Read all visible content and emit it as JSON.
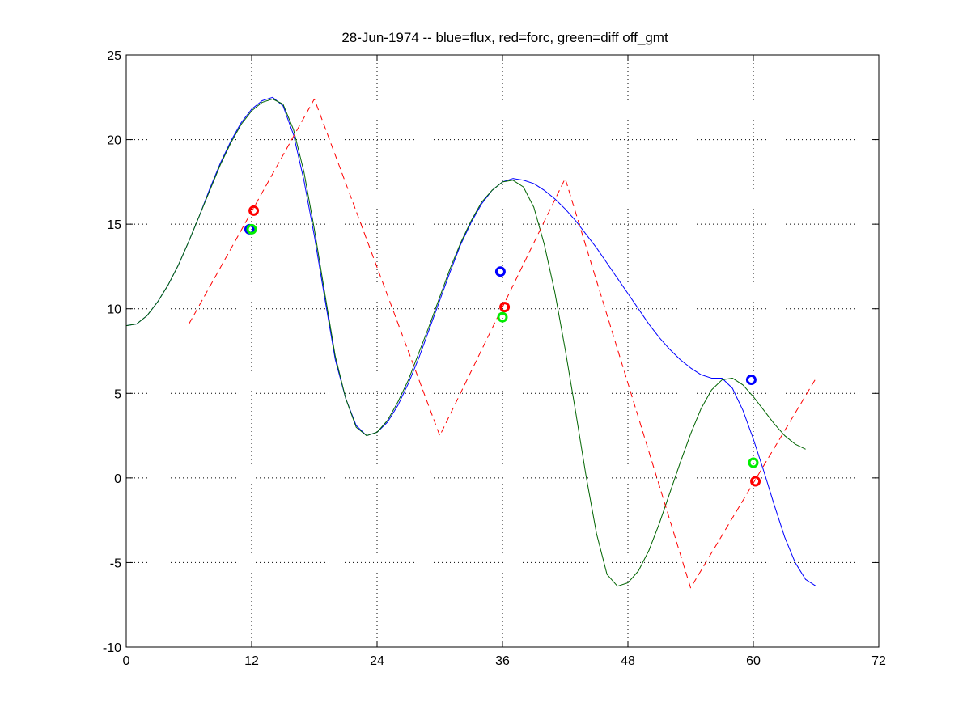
{
  "chart_data": {
    "type": "line",
    "title": "28-Jun-1974 -- blue=flux, red=forc, green=diff off_gmt",
    "xlabel": "",
    "ylabel": "",
    "xlim": [
      0,
      72
    ],
    "ylim": [
      -10,
      25
    ],
    "xticks": [
      0,
      12,
      24,
      36,
      48,
      60,
      72
    ],
    "yticks": [
      -10,
      -5,
      0,
      5,
      10,
      15,
      20,
      25
    ],
    "xtick_labels": [
      "0",
      "12",
      "24",
      "36",
      "48",
      "60",
      "72"
    ],
    "ytick_labels": [
      "-10",
      "-5",
      "0",
      "5",
      "10",
      "15",
      "20",
      "25"
    ],
    "grid": true,
    "legend": "none",
    "series": [
      {
        "color": "#0000ff",
        "style": "solid",
        "points": [
          [
            0,
            9.0
          ],
          [
            1,
            9.1
          ],
          [
            2,
            9.6
          ],
          [
            3,
            10.4
          ],
          [
            4,
            11.4
          ],
          [
            5,
            12.6
          ],
          [
            6,
            14.0
          ],
          [
            7,
            15.5
          ],
          [
            8,
            17.1
          ],
          [
            9,
            18.6
          ],
          [
            10,
            19.9
          ],
          [
            11,
            21.0
          ],
          [
            12,
            21.8
          ],
          [
            13,
            22.3
          ],
          [
            14,
            22.5
          ],
          [
            15,
            22.0
          ],
          [
            16,
            20.3
          ],
          [
            17,
            17.6
          ],
          [
            18,
            14.3
          ],
          [
            19,
            10.6
          ],
          [
            20,
            7.0
          ],
          [
            21,
            4.7
          ],
          [
            22,
            3.1
          ],
          [
            23,
            2.5
          ],
          [
            24,
            2.7
          ],
          [
            25,
            3.3
          ],
          [
            26,
            4.3
          ],
          [
            27,
            5.6
          ],
          [
            28,
            7.1
          ],
          [
            29,
            8.8
          ],
          [
            30,
            10.5
          ],
          [
            31,
            12.2
          ],
          [
            32,
            13.8
          ],
          [
            33,
            15.1
          ],
          [
            34,
            16.2
          ],
          [
            35,
            17.0
          ],
          [
            36,
            17.5
          ],
          [
            37,
            17.7
          ],
          [
            38,
            17.6
          ],
          [
            39,
            17.4
          ],
          [
            40,
            17.0
          ],
          [
            41,
            16.5
          ],
          [
            42,
            15.9
          ],
          [
            43,
            15.2
          ],
          [
            44,
            14.4
          ],
          [
            45,
            13.6
          ],
          [
            46,
            12.7
          ],
          [
            47,
            11.8
          ],
          [
            48,
            10.9
          ],
          [
            49,
            10.0
          ],
          [
            50,
            9.1
          ],
          [
            51,
            8.3
          ],
          [
            52,
            7.6
          ],
          [
            53,
            7.0
          ],
          [
            54,
            6.5
          ],
          [
            55,
            6.1
          ],
          [
            56,
            5.9
          ],
          [
            57,
            5.9
          ],
          [
            58,
            5.3
          ],
          [
            59,
            4.0
          ],
          [
            60,
            2.3
          ],
          [
            61,
            0.4
          ],
          [
            62,
            -1.6
          ],
          [
            63,
            -3.5
          ],
          [
            64,
            -5.0
          ],
          [
            65,
            -6.0
          ],
          [
            66,
            -6.4
          ]
        ]
      },
      {
        "color": "#006400",
        "style": "solid",
        "points": [
          [
            0,
            9.0
          ],
          [
            1,
            9.1
          ],
          [
            2,
            9.6
          ],
          [
            3,
            10.4
          ],
          [
            4,
            11.4
          ],
          [
            5,
            12.6
          ],
          [
            6,
            14.0
          ],
          [
            7,
            15.5
          ],
          [
            8,
            17.0
          ],
          [
            9,
            18.5
          ],
          [
            10,
            19.8
          ],
          [
            11,
            20.9
          ],
          [
            12,
            21.7
          ],
          [
            13,
            22.2
          ],
          [
            14,
            22.4
          ],
          [
            15,
            22.1
          ],
          [
            16,
            20.6
          ],
          [
            17,
            18.1
          ],
          [
            18,
            14.7
          ],
          [
            19,
            10.9
          ],
          [
            20,
            7.2
          ],
          [
            21,
            4.7
          ],
          [
            22,
            3.0
          ],
          [
            23,
            2.5
          ],
          [
            24,
            2.7
          ],
          [
            25,
            3.4
          ],
          [
            26,
            4.5
          ],
          [
            27,
            5.8
          ],
          [
            28,
            7.4
          ],
          [
            29,
            9.0
          ],
          [
            30,
            10.7
          ],
          [
            31,
            12.4
          ],
          [
            32,
            13.9
          ],
          [
            33,
            15.2
          ],
          [
            34,
            16.3
          ],
          [
            35,
            17.0
          ],
          [
            36,
            17.5
          ],
          [
            37,
            17.6
          ],
          [
            38,
            17.2
          ],
          [
            39,
            16.0
          ],
          [
            40,
            13.8
          ],
          [
            41,
            11.0
          ],
          [
            42,
            7.6
          ],
          [
            43,
            3.9
          ],
          [
            44,
            0.1
          ],
          [
            45,
            -3.3
          ],
          [
            46,
            -5.7
          ],
          [
            47,
            -6.4
          ],
          [
            48,
            -6.2
          ],
          [
            49,
            -5.5
          ],
          [
            50,
            -4.3
          ],
          [
            51,
            -2.7
          ],
          [
            52,
            -0.9
          ],
          [
            53,
            0.9
          ],
          [
            54,
            2.6
          ],
          [
            55,
            4.1
          ],
          [
            56,
            5.2
          ],
          [
            57,
            5.8
          ],
          [
            58,
            5.9
          ],
          [
            59,
            5.5
          ],
          [
            60,
            4.8
          ],
          [
            61,
            4.0
          ],
          [
            62,
            3.2
          ],
          [
            63,
            2.5
          ],
          [
            64,
            2.0
          ],
          [
            65,
            1.7
          ]
        ]
      },
      {
        "color": "#ff0000",
        "style": "dashed",
        "points": [
          [
            6,
            9.1
          ],
          [
            18,
            22.4
          ],
          [
            30,
            2.5
          ],
          [
            42,
            17.7
          ],
          [
            54,
            -6.5
          ],
          [
            66,
            5.9
          ]
        ]
      }
    ],
    "markers": [
      {
        "color": "#0000ff",
        "x": 11.8,
        "y": 14.7
      },
      {
        "color": "#00ee00",
        "x": 12.0,
        "y": 14.7
      },
      {
        "color": "#ff0000",
        "x": 12.2,
        "y": 15.8
      },
      {
        "color": "#0000ff",
        "x": 35.8,
        "y": 12.2
      },
      {
        "color": "#ff0000",
        "x": 36.2,
        "y": 10.1
      },
      {
        "color": "#00ee00",
        "x": 36.0,
        "y": 9.5
      },
      {
        "color": "#0000ff",
        "x": 59.8,
        "y": 5.8
      },
      {
        "color": "#00ee00",
        "x": 60.0,
        "y": 0.9
      },
      {
        "color": "#ff0000",
        "x": 60.2,
        "y": -0.2
      }
    ]
  }
}
